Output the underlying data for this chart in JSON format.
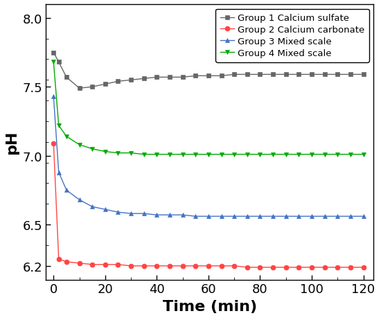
{
  "title": "",
  "xlabel": "Time (min)",
  "ylabel": "pH",
  "xlim": [
    -3,
    124
  ],
  "ylim": [
    6.1,
    8.1
  ],
  "yticks": [
    6.2,
    6.5,
    7.0,
    7.5,
    8.0
  ],
  "xticks": [
    0,
    20,
    40,
    60,
    80,
    100,
    120
  ],
  "group1": {
    "label": "Group 1 Calcium sulfate",
    "color": "#666666",
    "marker": "s",
    "x": [
      0,
      2,
      5,
      10,
      15,
      20,
      25,
      30,
      35,
      40,
      45,
      50,
      55,
      60,
      65,
      70,
      75,
      80,
      85,
      90,
      95,
      100,
      105,
      110,
      115,
      120
    ],
    "y": [
      7.75,
      7.68,
      7.57,
      7.49,
      7.5,
      7.52,
      7.54,
      7.55,
      7.56,
      7.57,
      7.57,
      7.57,
      7.58,
      7.58,
      7.58,
      7.59,
      7.59,
      7.59,
      7.59,
      7.59,
      7.59,
      7.59,
      7.59,
      7.59,
      7.59,
      7.59
    ]
  },
  "group2": {
    "label": "Group 2 Calcium carbonate",
    "color": "#ff4444",
    "marker": "o",
    "x": [
      0,
      2,
      5,
      10,
      15,
      20,
      25,
      30,
      35,
      40,
      45,
      50,
      55,
      60,
      65,
      70,
      75,
      80,
      85,
      90,
      95,
      100,
      105,
      110,
      115,
      120
    ],
    "y": [
      7.09,
      6.25,
      6.23,
      6.22,
      6.21,
      6.21,
      6.21,
      6.2,
      6.2,
      6.2,
      6.2,
      6.2,
      6.2,
      6.2,
      6.2,
      6.2,
      6.19,
      6.19,
      6.19,
      6.19,
      6.19,
      6.19,
      6.19,
      6.19,
      6.19,
      6.19
    ]
  },
  "group3": {
    "label": "Group 3 Mixed scale",
    "color": "#4472c4",
    "marker": "^",
    "x": [
      0,
      2,
      5,
      10,
      15,
      20,
      25,
      30,
      35,
      40,
      45,
      50,
      55,
      60,
      65,
      70,
      75,
      80,
      85,
      90,
      95,
      100,
      105,
      110,
      115,
      120
    ],
    "y": [
      7.43,
      6.88,
      6.75,
      6.68,
      6.63,
      6.61,
      6.59,
      6.58,
      6.58,
      6.57,
      6.57,
      6.57,
      6.56,
      6.56,
      6.56,
      6.56,
      6.56,
      6.56,
      6.56,
      6.56,
      6.56,
      6.56,
      6.56,
      6.56,
      6.56,
      6.56
    ]
  },
  "group4": {
    "label": "Group 4 Mixed scale",
    "color": "#00aa00",
    "marker": "v",
    "x": [
      0,
      2,
      5,
      10,
      15,
      20,
      25,
      30,
      35,
      40,
      45,
      50,
      55,
      60,
      65,
      70,
      75,
      80,
      85,
      90,
      95,
      100,
      105,
      110,
      115,
      120
    ],
    "y": [
      7.68,
      7.22,
      7.14,
      7.08,
      7.05,
      7.03,
      7.02,
      7.02,
      7.01,
      7.01,
      7.01,
      7.01,
      7.01,
      7.01,
      7.01,
      7.01,
      7.01,
      7.01,
      7.01,
      7.01,
      7.01,
      7.01,
      7.01,
      7.01,
      7.01,
      7.01
    ]
  },
  "legend_loc": "upper right",
  "markersize": 5,
  "linewidth": 1.0,
  "xlabel_fontsize": 16,
  "ylabel_fontsize": 16,
  "tick_fontsize": 13,
  "legend_fontsize": 9.5
}
